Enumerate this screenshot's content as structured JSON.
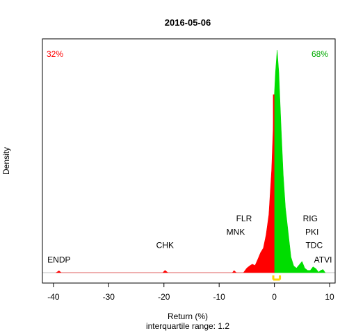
{
  "chart_data": {
    "type": "area",
    "title": "2016-05-06",
    "xlabel": "Return (%)",
    "ylabel": "Density",
    "subtitle": "interquartile range: 1.2",
    "xlim": [
      -42,
      11
    ],
    "x_ticks": [
      -40,
      -30,
      -20,
      -10,
      0,
      10
    ],
    "negative_share_label": "32%",
    "positive_share_label": "68%",
    "colors": {
      "negative": "#ff0000",
      "positive": "#00dd00",
      "iqr": "#ffd700",
      "axis": "#000000",
      "baseline": "#bfbfbf"
    },
    "density_curve": [
      {
        "x": -39.5,
        "y": 0.0
      },
      {
        "x": -39.0,
        "y": 0.008
      },
      {
        "x": -38.6,
        "y": 0.0
      },
      {
        "x": -20.2,
        "y": 0.0
      },
      {
        "x": -19.8,
        "y": 0.01
      },
      {
        "x": -19.3,
        "y": 0.0
      },
      {
        "x": -7.6,
        "y": 0.0
      },
      {
        "x": -7.3,
        "y": 0.009
      },
      {
        "x": -6.9,
        "y": 0.0
      },
      {
        "x": -5.6,
        "y": 0.0
      },
      {
        "x": -5.0,
        "y": 0.02
      },
      {
        "x": -4.5,
        "y": 0.03
      },
      {
        "x": -4.0,
        "y": 0.038
      },
      {
        "x": -3.5,
        "y": 0.032
      },
      {
        "x": -3.0,
        "y": 0.06
      },
      {
        "x": -2.5,
        "y": 0.09
      },
      {
        "x": -2.0,
        "y": 0.11
      },
      {
        "x": -1.5,
        "y": 0.17
      },
      {
        "x": -1.0,
        "y": 0.26
      },
      {
        "x": -0.5,
        "y": 0.46
      },
      {
        "x": -0.2,
        "y": 0.66
      },
      {
        "x": 0.0,
        "y": 0.8
      },
      {
        "x": 0.2,
        "y": 0.9
      },
      {
        "x": 0.5,
        "y": 1.0
      },
      {
        "x": 0.8,
        "y": 0.9
      },
      {
        "x": 1.2,
        "y": 0.66
      },
      {
        "x": 1.6,
        "y": 0.44
      },
      {
        "x": 2.0,
        "y": 0.29
      },
      {
        "x": 2.5,
        "y": 0.18
      },
      {
        "x": 3.0,
        "y": 0.07
      },
      {
        "x": 3.5,
        "y": 0.03
      },
      {
        "x": 4.0,
        "y": 0.02
      },
      {
        "x": 4.5,
        "y": 0.035
      },
      {
        "x": 5.0,
        "y": 0.05
      },
      {
        "x": 5.5,
        "y": 0.02
      },
      {
        "x": 6.0,
        "y": 0.01
      },
      {
        "x": 6.5,
        "y": 0.01
      },
      {
        "x": 7.0,
        "y": 0.026
      },
      {
        "x": 7.5,
        "y": 0.018
      },
      {
        "x": 8.0,
        "y": 0.002
      },
      {
        "x": 8.4,
        "y": 0.01
      },
      {
        "x": 8.8,
        "y": 0.014
      },
      {
        "x": 9.2,
        "y": 0.0
      }
    ],
    "negative_spike": {
      "x": 0.0,
      "y": 0.8
    },
    "iqr": [
      -0.2,
      1.0
    ],
    "stock_labels": [
      {
        "text": "ENDP",
        "x": -39.0,
        "y": 0.045
      },
      {
        "text": "CHK",
        "x": -19.8,
        "y": 0.11
      },
      {
        "text": "FLR",
        "x": -5.5,
        "y": 0.23
      },
      {
        "text": "MNK",
        "x": -7.0,
        "y": 0.17
      },
      {
        "text": "RIG",
        "x": 6.5,
        "y": 0.23
      },
      {
        "text": "PKI",
        "x": 6.8,
        "y": 0.17
      },
      {
        "text": "TDC",
        "x": 7.2,
        "y": 0.11
      },
      {
        "text": "ATVI",
        "x": 8.8,
        "y": 0.045
      }
    ]
  }
}
